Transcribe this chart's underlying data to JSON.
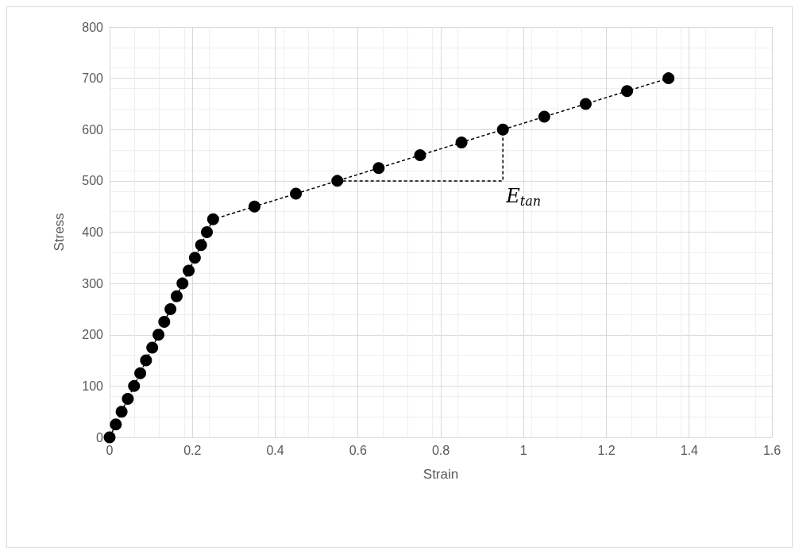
{
  "chart_data": {
    "type": "line",
    "xlabel": "Strain",
    "ylabel": "Stress",
    "xlim": [
      0,
      1.6
    ],
    "xticks": [
      0,
      0.2,
      0.4,
      0.6,
      0.8,
      1,
      1.2,
      1.4,
      1.6
    ],
    "ylim": [
      0,
      800
    ],
    "yticks": [
      0,
      100,
      200,
      300,
      400,
      500,
      600,
      700,
      800
    ],
    "grid": true,
    "marker": "circle",
    "line_style": "dashed",
    "series": [
      {
        "color": "#000000",
        "x": [
          0,
          0.015,
          0.029,
          0.044,
          0.059,
          0.074,
          0.088,
          0.103,
          0.118,
          0.132,
          0.147,
          0.162,
          0.176,
          0.191,
          0.206,
          0.221,
          0.235,
          0.25,
          0.35,
          0.45,
          0.55,
          0.65,
          0.75,
          0.85,
          0.95,
          1.05,
          1.15,
          1.25,
          1.35
        ],
        "values": [
          0,
          25,
          50,
          75,
          100,
          125,
          150,
          175,
          200,
          225,
          250,
          275,
          300,
          325,
          350,
          375,
          400,
          425,
          450,
          475,
          500,
          525,
          550,
          575,
          600,
          625,
          650,
          675,
          700
        ]
      },
      {
        "color": "#000000",
        "marker": "none",
        "x": [
          0.55,
          0.95,
          0.95
        ],
        "values": [
          500,
          500,
          600
        ]
      }
    ],
    "annotations": [
      {
        "text": "E$_{tan}$",
        "x": 0.95,
        "y": 500
      }
    ]
  }
}
